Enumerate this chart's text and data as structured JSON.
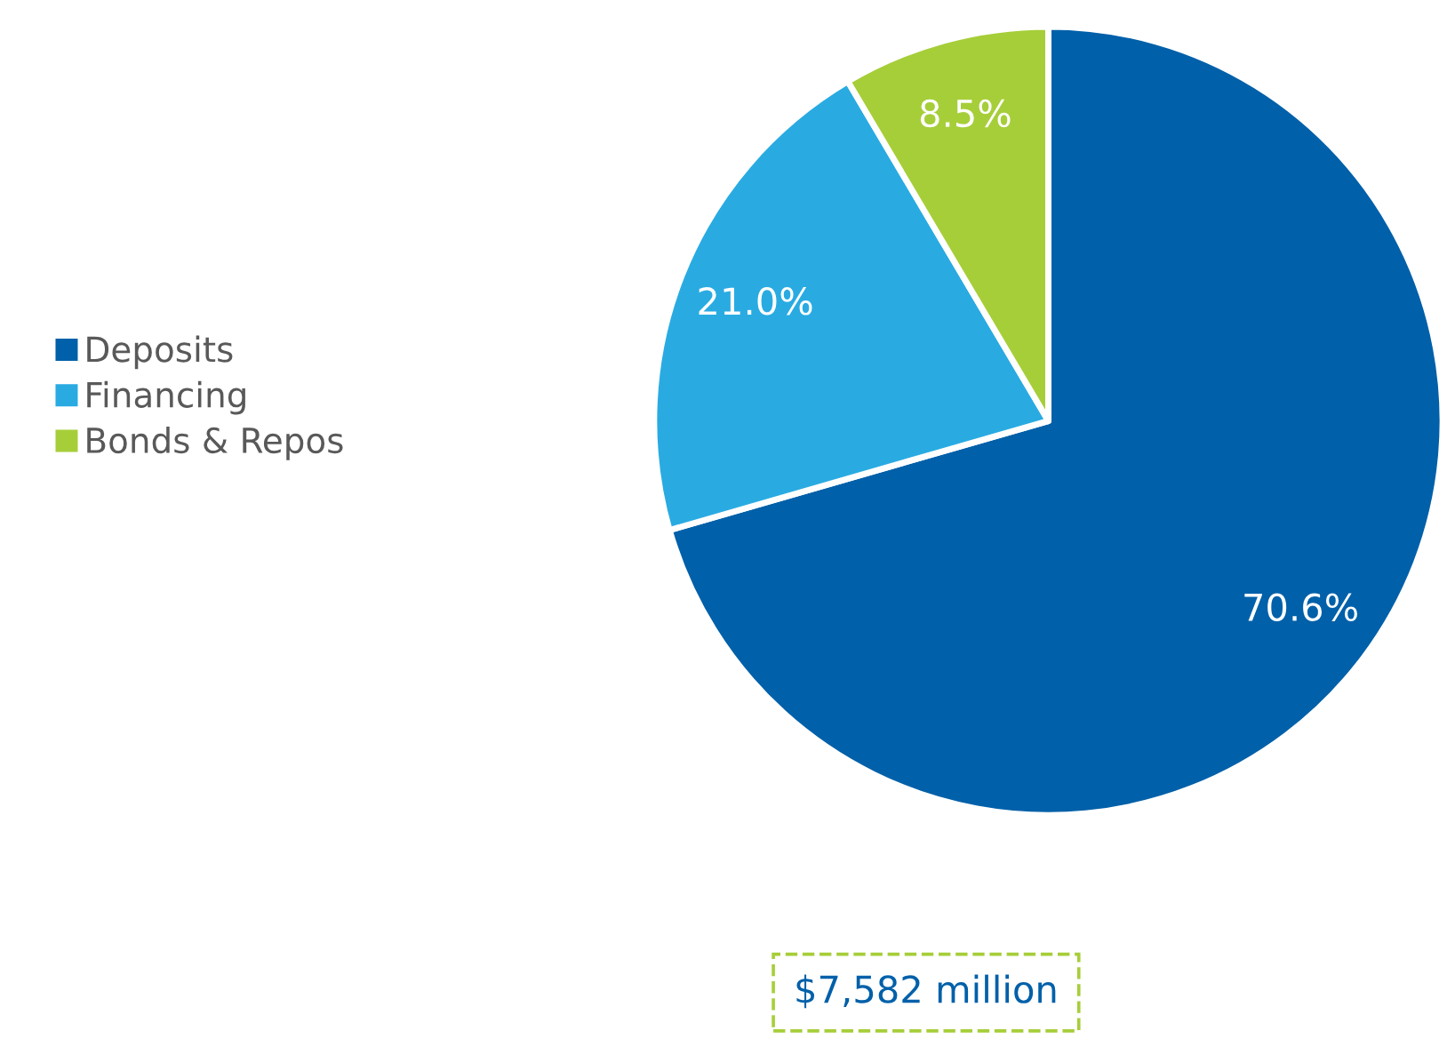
{
  "chart_data": {
    "type": "pie",
    "categories": [
      "Deposits",
      "Financing",
      "Bonds & Repos"
    ],
    "values": [
      70.6,
      21.0,
      8.5
    ],
    "value_labels": [
      "70.6%",
      "21.0%",
      "8.5%"
    ],
    "colors": [
      "#0060a9",
      "#29abe2",
      "#a6ce39"
    ],
    "legend": "left",
    "annotations": [
      "$7,582 million"
    ]
  }
}
